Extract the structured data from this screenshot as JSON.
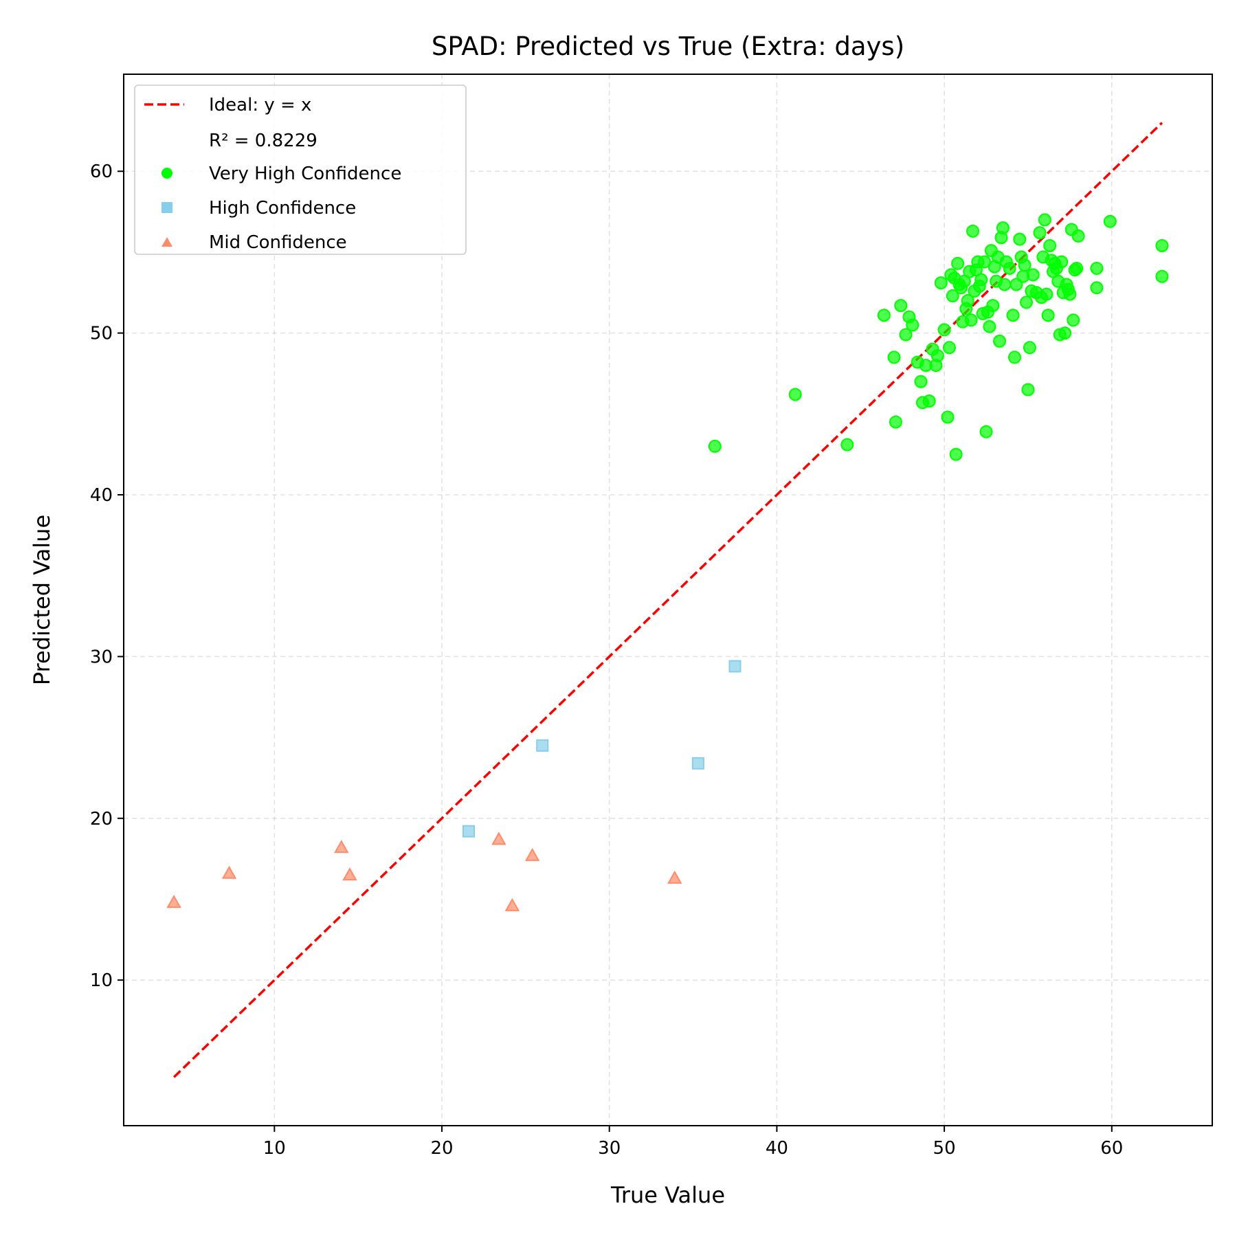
{
  "chart_data": {
    "type": "scatter",
    "title": "SPAD: Predicted vs True (Extra: days)",
    "xlabel": "True Value",
    "ylabel": "Predicted Value",
    "xlim": [
      1,
      66
    ],
    "ylim": [
      1,
      66
    ],
    "xticks": [
      10,
      20,
      30,
      40,
      50,
      60
    ],
    "yticks": [
      10,
      20,
      30,
      40,
      50,
      60
    ],
    "grid": true,
    "legend_position": "upper-left",
    "reference_line": {
      "label": "Ideal: y = x",
      "from": [
        4,
        4
      ],
      "to": [
        63,
        63
      ],
      "color": "#ff0000",
      "style": "dashed"
    },
    "annotation": "R² = 0.8229",
    "series": [
      {
        "name": "Very High Confidence",
        "marker": "circle",
        "color": "#00ff00",
        "points": [
          [
            36.3,
            43.0
          ],
          [
            41.1,
            46.2
          ],
          [
            44.2,
            43.1
          ],
          [
            46.4,
            51.1
          ],
          [
            47.0,
            48.5
          ],
          [
            47.1,
            44.5
          ],
          [
            47.4,
            51.7
          ],
          [
            47.7,
            49.9
          ],
          [
            47.9,
            51.0
          ],
          [
            48.1,
            50.5
          ],
          [
            48.4,
            48.2
          ],
          [
            48.6,
            47.0
          ],
          [
            48.7,
            45.7
          ],
          [
            48.9,
            48.0
          ],
          [
            49.1,
            45.8
          ],
          [
            49.3,
            49.0
          ],
          [
            49.5,
            48.0
          ],
          [
            49.6,
            48.6
          ],
          [
            49.8,
            53.1
          ],
          [
            50.0,
            50.2
          ],
          [
            50.2,
            44.8
          ],
          [
            50.3,
            49.1
          ],
          [
            50.4,
            53.6
          ],
          [
            50.5,
            52.3
          ],
          [
            50.6,
            53.4
          ],
          [
            50.7,
            42.5
          ],
          [
            50.8,
            54.3
          ],
          [
            50.9,
            53.0
          ],
          [
            51.0,
            52.8
          ],
          [
            51.1,
            50.7
          ],
          [
            51.2,
            53.2
          ],
          [
            51.3,
            51.5
          ],
          [
            51.4,
            52.0
          ],
          [
            51.5,
            53.8
          ],
          [
            51.6,
            50.8
          ],
          [
            51.7,
            56.3
          ],
          [
            51.8,
            52.6
          ],
          [
            51.9,
            53.9
          ],
          [
            52.0,
            54.4
          ],
          [
            52.1,
            52.9
          ],
          [
            52.2,
            53.3
          ],
          [
            52.3,
            51.2
          ],
          [
            52.4,
            54.4
          ],
          [
            52.5,
            43.9
          ],
          [
            52.6,
            51.3
          ],
          [
            52.7,
            50.4
          ],
          [
            52.8,
            55.1
          ],
          [
            52.9,
            51.7
          ],
          [
            53.0,
            54.1
          ],
          [
            53.1,
            53.2
          ],
          [
            53.2,
            54.7
          ],
          [
            53.3,
            49.5
          ],
          [
            53.4,
            55.9
          ],
          [
            53.5,
            56.5
          ],
          [
            53.6,
            53.0
          ],
          [
            53.7,
            54.4
          ],
          [
            53.9,
            54.0
          ],
          [
            54.1,
            51.1
          ],
          [
            54.2,
            48.5
          ],
          [
            54.3,
            53.0
          ],
          [
            54.5,
            55.8
          ],
          [
            54.6,
            54.7
          ],
          [
            54.7,
            53.5
          ],
          [
            54.8,
            54.2
          ],
          [
            54.9,
            51.9
          ],
          [
            55.0,
            46.5
          ],
          [
            55.1,
            49.1
          ],
          [
            55.2,
            52.6
          ],
          [
            55.3,
            53.6
          ],
          [
            55.5,
            52.5
          ],
          [
            55.7,
            56.2
          ],
          [
            55.8,
            52.2
          ],
          [
            55.9,
            54.7
          ],
          [
            56.0,
            57.0
          ],
          [
            56.1,
            52.4
          ],
          [
            56.2,
            51.1
          ],
          [
            56.3,
            55.4
          ],
          [
            56.4,
            54.5
          ],
          [
            56.5,
            53.8
          ],
          [
            56.6,
            54.3
          ],
          [
            56.7,
            54.0
          ],
          [
            56.8,
            53.2
          ],
          [
            56.9,
            49.9
          ],
          [
            57.0,
            54.4
          ],
          [
            57.1,
            52.5
          ],
          [
            57.2,
            50.0
          ],
          [
            57.3,
            53.0
          ],
          [
            57.4,
            52.7
          ],
          [
            57.5,
            52.4
          ],
          [
            57.6,
            56.4
          ],
          [
            57.7,
            50.8
          ],
          [
            57.8,
            53.9
          ],
          [
            57.9,
            54.0
          ],
          [
            58.0,
            56.0
          ],
          [
            59.1,
            52.8
          ],
          [
            59.1,
            54.0
          ],
          [
            59.9,
            56.9
          ],
          [
            63.0,
            55.4
          ],
          [
            63.0,
            53.5
          ]
        ]
      },
      {
        "name": "High Confidence",
        "marker": "square",
        "color": "#87ceeb",
        "points": [
          [
            21.6,
            19.2
          ],
          [
            26.0,
            24.5
          ],
          [
            35.3,
            23.4
          ],
          [
            37.5,
            29.4
          ]
        ]
      },
      {
        "name": "Mid Confidence",
        "marker": "triangle",
        "color": "#ff8c69",
        "points": [
          [
            4.0,
            14.8
          ],
          [
            7.3,
            16.6
          ],
          [
            14.0,
            18.2
          ],
          [
            14.5,
            16.5
          ],
          [
            23.4,
            18.7
          ],
          [
            24.2,
            14.6
          ],
          [
            25.4,
            17.7
          ],
          [
            33.9,
            16.3
          ]
        ]
      }
    ]
  }
}
